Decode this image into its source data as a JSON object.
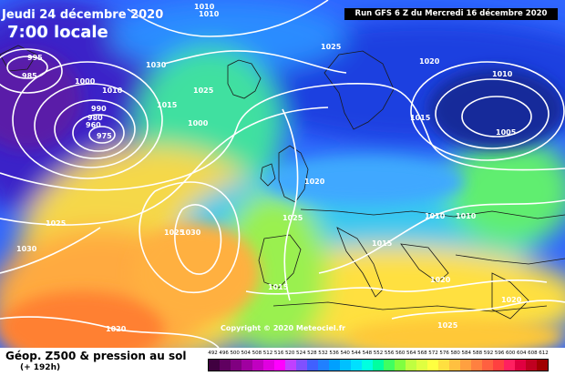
{
  "header": {
    "date": "Jeudi 24 décembre 2020",
    "time": "7:00 locale",
    "run": "Run GFS 6 Z du Mercredi 16 décembre 2020"
  },
  "map": {
    "copyright": "Copyright © 2020 Meteociel.fr",
    "pressure_labels": [
      "1010",
      "1010",
      "995",
      "985",
      "1000",
      "1010",
      "1030",
      "1025",
      "990",
      "980",
      "960",
      "975",
      "1015",
      "1025",
      "1020",
      "1015",
      "1010",
      "1005",
      "1000",
      "1020",
      "1025",
      "1025",
      "1025",
      "1030",
      "1010",
      "1010",
      "1015",
      "1030",
      "1015",
      "1020",
      "1020",
      "1020",
      "1025"
    ]
  },
  "footer": {
    "title": "Géop. Z500 & pression au sol",
    "lead": "(+ 192h)"
  },
  "legend": {
    "unit_ticks": [
      "492",
      "496",
      "500",
      "504",
      "508",
      "512",
      "516",
      "520",
      "524",
      "528",
      "532",
      "536",
      "540",
      "544",
      "548",
      "552",
      "556",
      "560",
      "564",
      "568",
      "572",
      "576",
      "580",
      "584",
      "588",
      "592",
      "596",
      "600",
      "604",
      "608",
      "612"
    ],
    "colors": [
      "#400040",
      "#600060",
      "#800080",
      "#a000a0",
      "#c000c0",
      "#e000e0",
      "#ff00ff",
      "#c040ff",
      "#8050ff",
      "#4060ff",
      "#2080ff",
      "#00a0ff",
      "#00c0ff",
      "#00e0ff",
      "#00ffe0",
      "#00ffa0",
      "#40ff60",
      "#80ff40",
      "#c0ff40",
      "#e0ff40",
      "#ffff40",
      "#ffe040",
      "#ffc040",
      "#ffa040",
      "#ff8040",
      "#ff6040",
      "#ff4040",
      "#ff2060",
      "#e00040",
      "#c00020",
      "#a00000"
    ]
  }
}
